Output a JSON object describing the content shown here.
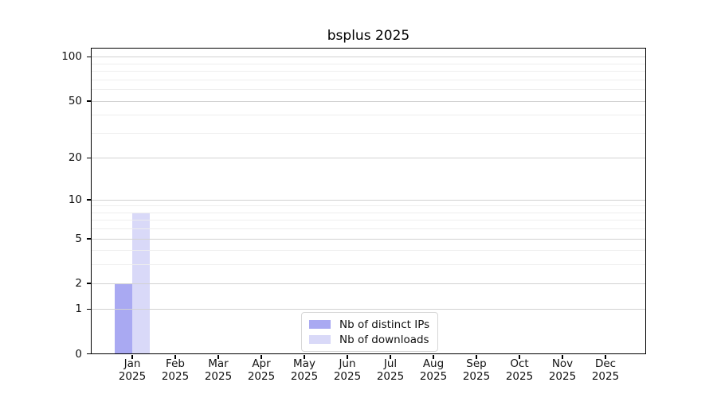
{
  "chart_data": {
    "type": "bar",
    "title": "bsplus 2025",
    "year": "2025",
    "categories": [
      "Jan 2025",
      "Feb 2025",
      "Mar 2025",
      "Apr 2025",
      "May 2025",
      "Jun 2025",
      "Jul 2025",
      "Aug 2025",
      "Sep 2025",
      "Oct 2025",
      "Nov 2025",
      "Dec 2025"
    ],
    "series": [
      {
        "name": "Nb of distinct IPs",
        "color": "#a9a9f2",
        "values": [
          2,
          0,
          0,
          0,
          0,
          0,
          0,
          0,
          0,
          0,
          0,
          0
        ]
      },
      {
        "name": "Nb of downloads",
        "color": "#d9d9f8",
        "values": [
          8,
          0,
          0,
          0,
          0,
          0,
          0,
          0,
          0,
          0,
          0,
          0
        ]
      }
    ],
    "yscale": "log1p",
    "ylim": [
      0,
      114
    ],
    "y_major_ticks": [
      0,
      1,
      2,
      5,
      10,
      20,
      50,
      100
    ],
    "y_minor_ticks": [
      3,
      4,
      6,
      7,
      8,
      9,
      30,
      40,
      60,
      70,
      80,
      90
    ],
    "xlabel": "",
    "ylabel": "",
    "grid": true,
    "legend": {
      "position": "inside-bottom-center",
      "labels": [
        "Nb of distinct IPs",
        "Nb of downloads"
      ]
    },
    "colors": {
      "background": "#ffffff",
      "frame": "#000000",
      "major_grid": "#d2d2d2",
      "minor_grid": "#eeeeee",
      "text": "#111111",
      "legend_border": "#d6d6d6"
    }
  }
}
